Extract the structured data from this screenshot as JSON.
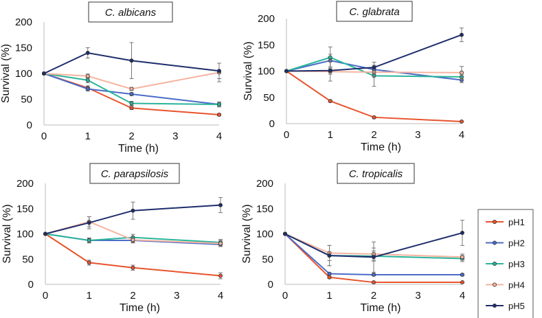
{
  "chart_data": [
    {
      "type": "line",
      "title": "C. albicans",
      "xlabel": "Time (h)",
      "ylabel": "Survival (%)",
      "xlim": [
        0,
        4
      ],
      "ylim": [
        0,
        200
      ],
      "xticks": [
        "0",
        "1",
        "2",
        "3",
        "4"
      ],
      "yticks": [
        "0",
        "50",
        "100",
        "150",
        "200"
      ],
      "x": [
        0,
        1,
        2,
        4
      ],
      "series": [
        {
          "name": "pH1",
          "values": [
            100,
            72,
            33,
            20
          ],
          "errors": [
            0,
            4,
            3,
            2
          ]
        },
        {
          "name": "pH2",
          "values": [
            100,
            70,
            60,
            40
          ],
          "errors": [
            0,
            4,
            3,
            3
          ]
        },
        {
          "name": "pH3",
          "values": [
            100,
            87,
            42,
            40
          ],
          "errors": [
            0,
            5,
            4,
            5
          ]
        },
        {
          "name": "pH4",
          "values": [
            100,
            95,
            70,
            102
          ],
          "errors": [
            0,
            4,
            3,
            18
          ]
        },
        {
          "name": "pH5",
          "values": [
            100,
            140,
            125,
            105
          ],
          "errors": [
            0,
            10,
            35,
            15
          ]
        }
      ]
    },
    {
      "type": "line",
      "title": "C. glabrata",
      "xlabel": "Time (h)",
      "ylabel": "Survival (%)",
      "xlim": [
        0,
        4
      ],
      "ylim": [
        0,
        200
      ],
      "xticks": [
        "0",
        "1",
        "2",
        "3",
        "4"
      ],
      "yticks": [
        "0",
        "50",
        "100",
        "150",
        "200"
      ],
      "x": [
        0,
        1,
        2,
        4
      ],
      "series": [
        {
          "name": "pH1",
          "values": [
            100,
            43,
            12,
            4
          ],
          "errors": [
            0,
            2,
            2,
            1
          ]
        },
        {
          "name": "pH2",
          "values": [
            100,
            120,
            103,
            83
          ],
          "errors": [
            0,
            12,
            8,
            5
          ]
        },
        {
          "name": "pH3",
          "values": [
            100,
            126,
            91,
            89
          ],
          "errors": [
            0,
            20,
            20,
            5
          ]
        },
        {
          "name": "pH4",
          "values": [
            100,
            99,
            98,
            97
          ],
          "errors": [
            0,
            5,
            8,
            12
          ]
        },
        {
          "name": "pH5",
          "values": [
            100,
            101,
            107,
            169
          ],
          "errors": [
            0,
            20,
            10,
            13
          ]
        }
      ]
    },
    {
      "type": "line",
      "title": "C. parapsilosis",
      "xlabel": "Time (h)",
      "ylabel": "Survival (%)",
      "xlim": [
        0,
        4
      ],
      "ylim": [
        0,
        200
      ],
      "xticks": [
        "0",
        "1",
        "2",
        "3",
        "4"
      ],
      "yticks": [
        "0",
        "50",
        "100",
        "150",
        "200"
      ],
      "x": [
        0,
        1,
        2,
        4
      ],
      "series": [
        {
          "name": "pH1",
          "values": [
            100,
            43,
            33,
            17
          ],
          "errors": [
            0,
            5,
            5,
            6
          ]
        },
        {
          "name": "pH2",
          "values": [
            100,
            87,
            87,
            79
          ],
          "errors": [
            0,
            4,
            4,
            4
          ]
        },
        {
          "name": "pH3",
          "values": [
            100,
            87,
            93,
            83
          ],
          "errors": [
            0,
            5,
            6,
            6
          ]
        },
        {
          "name": "pH4",
          "values": [
            100,
            124,
            88,
            81
          ],
          "errors": [
            0,
            10,
            6,
            6
          ]
        },
        {
          "name": "pH5",
          "values": [
            100,
            122,
            146,
            157
          ],
          "errors": [
            0,
            12,
            17,
            15
          ]
        }
      ]
    },
    {
      "type": "line",
      "title": "C. tropicalis",
      "xlabel": "Time (h)",
      "ylabel": "Survival (%)",
      "xlim": [
        0,
        4
      ],
      "ylim": [
        0,
        200
      ],
      "xticks": [
        "0",
        "1",
        "2",
        "3",
        "4"
      ],
      "yticks": [
        "0",
        "50",
        "100",
        "150",
        "200"
      ],
      "x": [
        0,
        1,
        2,
        4
      ],
      "series": [
        {
          "name": "pH1",
          "values": [
            100,
            14,
            4,
            4
          ],
          "errors": [
            0,
            2,
            1,
            1
          ]
        },
        {
          "name": "pH2",
          "values": [
            100,
            21,
            19,
            19
          ],
          "errors": [
            0,
            2,
            2,
            2
          ]
        },
        {
          "name": "pH3",
          "values": [
            100,
            57,
            56,
            51
          ],
          "errors": [
            0,
            20,
            10,
            6
          ]
        },
        {
          "name": "pH4",
          "values": [
            100,
            62,
            60,
            54
          ],
          "errors": [
            0,
            15,
            12,
            6
          ]
        },
        {
          "name": "pH5",
          "values": [
            100,
            57,
            54,
            102
          ],
          "errors": [
            0,
            20,
            30,
            25
          ]
        }
      ]
    }
  ],
  "legend": {
    "placement": "right",
    "entries": [
      "pH1",
      "pH2",
      "pH3",
      "pH4",
      "pH5"
    ]
  },
  "colors": {
    "pH1": "#e8532c",
    "pH2": "#4a6bc8",
    "pH3": "#2ab49a",
    "pH4": "#f5b49f",
    "pH5": "#1d2d6b",
    "axis": "#bbbbbb",
    "errorbar": "#777777"
  }
}
